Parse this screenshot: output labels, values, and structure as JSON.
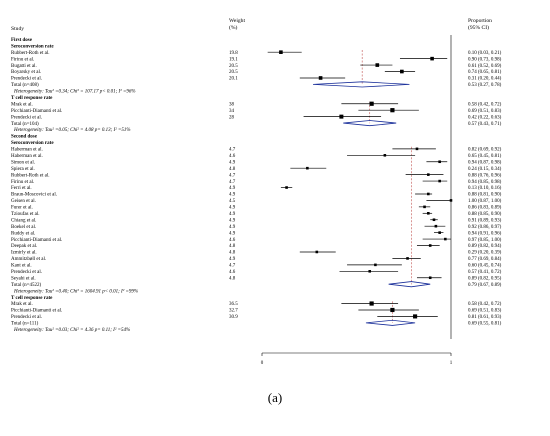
{
  "chart_data": {
    "type": "forest",
    "headers": {
      "study": "Study",
      "weight": "Weight",
      "weight_unit": "(%)",
      "proportion": "Proportion",
      "ci": "(95% CI)"
    },
    "xlim": [
      0,
      1
    ],
    "x_ticks": [
      "0",
      "1"
    ],
    "null_line": 1,
    "colors": {
      "diamond": "#1a2f9a",
      "dashed": "#c0504d",
      "point": "#000000"
    },
    "rows": [
      {
        "kind": "title",
        "label": "First dose"
      },
      {
        "kind": "subtitle",
        "label": "Seroconversion rate"
      },
      {
        "kind": "study",
        "label": "Rubbert-Roth et al.",
        "weight": "19.8",
        "est": 0.1,
        "lo": 0.03,
        "hi": 0.21,
        "ci_text": "0.10 (0.03, 0.21)"
      },
      {
        "kind": "study",
        "label": "Firinu et al.",
        "weight": "19.1",
        "est": 0.9,
        "lo": 0.73,
        "hi": 0.98,
        "ci_text": "0.90 (0.73, 0.98)"
      },
      {
        "kind": "study",
        "label": "Bugatti et al.",
        "weight": "20.5",
        "est": 0.61,
        "lo": 0.52,
        "hi": 0.69,
        "ci_text": "0.61 (0.52, 0.69)"
      },
      {
        "kind": "study",
        "label": "Boyarsky et al.",
        "weight": "20.5",
        "est": 0.74,
        "lo": 0.65,
        "hi": 0.81,
        "ci_text": "0.74 (0.65, 0.81)"
      },
      {
        "kind": "study",
        "label": "Prendecki et al.",
        "weight": "20.1",
        "est": 0.31,
        "lo": 0.2,
        "hi": 0.44,
        "ci_text": "0.31 (0.20, 0.44)"
      },
      {
        "kind": "total",
        "label": "Total (n=408)",
        "est": 0.53,
        "lo": 0.27,
        "hi": 0.78,
        "ci_text": "0.53 (0.27, 0.78)"
      },
      {
        "kind": "het",
        "label": "Heterogeneity: Tau² =0.34; Chi² = 107.17 p< 0.01; I² =96%"
      },
      {
        "kind": "subtitle",
        "label": "T cell response rate"
      },
      {
        "kind": "study",
        "label": "Mrak et al.",
        "weight": "38",
        "est": 0.58,
        "lo": 0.42,
        "hi": 0.72,
        "ci_text": "0.58 (0.42, 0.72)"
      },
      {
        "kind": "study",
        "label": "Picchianti-Diamanti et al.",
        "weight": "34",
        "est": 0.69,
        "lo": 0.51,
        "hi": 0.83,
        "ci_text": "0.69 (0.51, 0.83)"
      },
      {
        "kind": "study",
        "label": "Prendecki et al.",
        "weight": "28",
        "est": 0.42,
        "lo": 0.22,
        "hi": 0.63,
        "ci_text": "0.42 (0.22, 0.63)"
      },
      {
        "kind": "total",
        "label": "Total (n=104)",
        "est": 0.57,
        "lo": 0.43,
        "hi": 0.71,
        "ci_text": "0.57 (0.43, 0.71)"
      },
      {
        "kind": "het",
        "label": "Heterogeneity: Tau² =0.05; Chi² = 4.08 p= 0.13; I² =51%"
      },
      {
        "kind": "title",
        "label": "Second dose"
      },
      {
        "kind": "subtitle",
        "label": "Seroconversion rate"
      },
      {
        "kind": "study",
        "label": "Haberman et al.",
        "weight": "4.7",
        "est": 0.82,
        "lo": 0.69,
        "hi": 0.92,
        "ci_text": "0.82 (0.69, 0.92)"
      },
      {
        "kind": "study",
        "label": "Haberman et al.",
        "weight": "4.6",
        "est": 0.65,
        "lo": 0.45,
        "hi": 0.81,
        "ci_text": "0.65 (0.45, 0.81)"
      },
      {
        "kind": "study",
        "label": "Simon et al.",
        "weight": "4.9",
        "est": 0.94,
        "lo": 0.87,
        "hi": 0.98,
        "ci_text": "0.94 (0.87, 0.98)"
      },
      {
        "kind": "study",
        "label": "Spiera et al.",
        "weight": "4.8",
        "est": 0.24,
        "lo": 0.15,
        "hi": 0.34,
        "ci_text": "0.24 (0.15, 0.34)"
      },
      {
        "kind": "study",
        "label": "Rubbert-Roth et al.",
        "weight": "4.7",
        "est": 0.88,
        "lo": 0.76,
        "hi": 0.96,
        "ci_text": "0.88 (0.76, 0.96)"
      },
      {
        "kind": "study",
        "label": "Firinu et al.",
        "weight": "4.7",
        "est": 0.94,
        "lo": 0.85,
        "hi": 0.98,
        "ci_text": "0.94 (0.85, 0.98)"
      },
      {
        "kind": "study",
        "label": "Ferri et al.",
        "weight": "4.9",
        "est": 0.13,
        "lo": 0.1,
        "hi": 0.16,
        "ci_text": "0.13 (0.10, 0.16)"
      },
      {
        "kind": "study",
        "label": "Braun-Moscovici et al.",
        "weight": "4.9",
        "est": 0.88,
        "lo": 0.81,
        "hi": 0.9,
        "ci_text": "0.88 (0.81, 0.90)"
      },
      {
        "kind": "study",
        "label": "Geisen et al.",
        "weight": "4.5",
        "est": 1.0,
        "lo": 0.87,
        "hi": 1.0,
        "ci_text": "1.00 (0.87, 1.00)"
      },
      {
        "kind": "study",
        "label": "Furer et al.",
        "weight": "4.9",
        "est": 0.86,
        "lo": 0.83,
        "hi": 0.89,
        "ci_text": "0.86 (0.83, 0.89)"
      },
      {
        "kind": "study",
        "label": "Tzioufas et al.",
        "weight": "4.9",
        "est": 0.88,
        "lo": 0.85,
        "hi": 0.9,
        "ci_text": "0.88 (0.85, 0.90)"
      },
      {
        "kind": "study",
        "label": "Chiang et al.",
        "weight": "4.9",
        "est": 0.91,
        "lo": 0.89,
        "hi": 0.93,
        "ci_text": "0.91 (0.89, 0.93)"
      },
      {
        "kind": "study",
        "label": "Boekel et al.",
        "weight": "4.9",
        "est": 0.92,
        "lo": 0.86,
        "hi": 0.97,
        "ci_text": "0.92 (0.86, 0.97)"
      },
      {
        "kind": "study",
        "label": "Ruddy et al.",
        "weight": "4.9",
        "est": 0.94,
        "lo": 0.91,
        "hi": 0.96,
        "ci_text": "0.94 (0.91, 0.96)"
      },
      {
        "kind": "study",
        "label": "Picchianti-Diamanti et al.",
        "weight": "4.6",
        "est": 0.97,
        "lo": 0.85,
        "hi": 1.0,
        "ci_text": "0.97 (0.85, 1.00)"
      },
      {
        "kind": "study",
        "label": "Deepak et al.",
        "weight": "4.8",
        "est": 0.89,
        "lo": 0.82,
        "hi": 0.94,
        "ci_text": "0.89 (0.82, 0.94)"
      },
      {
        "kind": "study",
        "label": "Izmirly et al.",
        "weight": "4.8",
        "est": 0.29,
        "lo": 0.2,
        "hi": 0.39,
        "ci_text": "0.29 (0.20, 0.39)"
      },
      {
        "kind": "study",
        "label": "Ammitzbøll et al.",
        "weight": "4.9",
        "est": 0.77,
        "lo": 0.69,
        "hi": 0.84,
        "ci_text": "0.77 (0.69, 0.84)"
      },
      {
        "kind": "study",
        "label": "Kant et al.",
        "weight": "4.7",
        "est": 0.6,
        "lo": 0.45,
        "hi": 0.74,
        "ci_text": "0.60 (0.45, 0.74)"
      },
      {
        "kind": "study",
        "label": "Prendecki et al.",
        "weight": "4.6",
        "est": 0.57,
        "lo": 0.41,
        "hi": 0.72,
        "ci_text": "0.57 (0.41, 0.72)"
      },
      {
        "kind": "study",
        "label": "Seyahi et al.",
        "weight": "4.8",
        "est": 0.89,
        "lo": 0.82,
        "hi": 0.95,
        "ci_text": "0.89 (0.82, 0.95)"
      },
      {
        "kind": "total",
        "label": "Total (n=4522)",
        "est": 0.79,
        "lo": 0.67,
        "hi": 0.89,
        "ci_text": "0.79 (0.67, 0.89)"
      },
      {
        "kind": "het",
        "label": "Heterogeneity: Tau² =0.40; Chi² = 1604.91 p< 0.01; I² =99%"
      },
      {
        "kind": "subtitle",
        "label": "T cell response rate"
      },
      {
        "kind": "study",
        "label": "Mrak et al.",
        "weight": "36.5",
        "est": 0.58,
        "lo": 0.42,
        "hi": 0.72,
        "ci_text": "0.58 (0.42, 0.72)"
      },
      {
        "kind": "study",
        "label": "Picchianti-Diamanti et al.",
        "weight": "32.7",
        "est": 0.69,
        "lo": 0.51,
        "hi": 0.83,
        "ci_text": "0.69 (0.51, 0.83)"
      },
      {
        "kind": "study",
        "label": "Prendecki et al.",
        "weight": "30.9",
        "est": 0.81,
        "lo": 0.61,
        "hi": 0.93,
        "ci_text": "0.81 (0.61, 0.93)"
      },
      {
        "kind": "total",
        "label": "Total (n=111)",
        "est": 0.69,
        "lo": 0.55,
        "hi": 0.81,
        "ci_text": "0.69 (0.55, 0.81)"
      },
      {
        "kind": "het",
        "label": "Heterogeneity: Tau² =0.03; Chi² = 4.36 p= 0.11; I² =54%"
      }
    ]
  },
  "caption": "(a)"
}
